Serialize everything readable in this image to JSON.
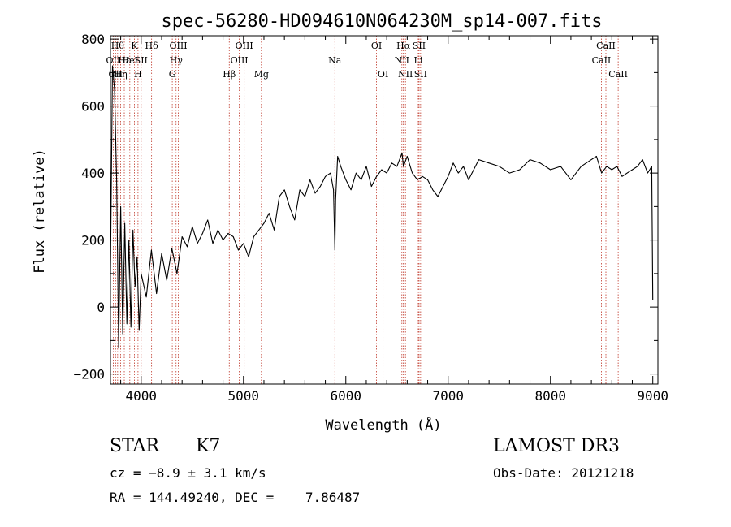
{
  "chart_data": {
    "type": "line",
    "title": "spec-56280-HD094610N064230M_sp14-007.fits",
    "xlabel": "Wavelength (Å)",
    "ylabel": "Flux (relative)",
    "xlim": [
      3700,
      9050
    ],
    "ylim": [
      -230,
      810
    ],
    "xticks": [
      4000,
      5000,
      6000,
      7000,
      8000,
      9000
    ],
    "yticks": [
      -200,
      0,
      200,
      400,
      600,
      800
    ],
    "xtick_labels": [
      "4000",
      "5000",
      "6000",
      "7000",
      "8000",
      "9000"
    ],
    "ytick_labels": [
      "−200",
      "0",
      "200",
      "400",
      "600",
      "800"
    ],
    "series": [
      {
        "name": "flux",
        "x": [
          3700,
          3720,
          3740,
          3760,
          3780,
          3800,
          3820,
          3840,
          3860,
          3880,
          3900,
          3920,
          3940,
          3960,
          3980,
          4000,
          4050,
          4100,
          4150,
          4200,
          4250,
          4300,
          4350,
          4400,
          4450,
          4500,
          4550,
          4600,
          4650,
          4700,
          4750,
          4800,
          4850,
          4900,
          4950,
          5000,
          5050,
          5100,
          5150,
          5200,
          5250,
          5300,
          5350,
          5400,
          5450,
          5500,
          5550,
          5600,
          5650,
          5700,
          5750,
          5800,
          5850,
          5880,
          5893,
          5900,
          5920,
          5950,
          6000,
          6050,
          6100,
          6150,
          6200,
          6250,
          6300,
          6350,
          6400,
          6450,
          6500,
          6550,
          6563,
          6600,
          6650,
          6700,
          6750,
          6800,
          6850,
          6900,
          6950,
          7000,
          7050,
          7100,
          7150,
          7200,
          7300,
          7400,
          7500,
          7600,
          7700,
          7800,
          7900,
          8000,
          8100,
          8200,
          8300,
          8400,
          8450,
          8500,
          8550,
          8600,
          8650,
          8700,
          8750,
          8800,
          8850,
          8900,
          8950,
          8990,
          9000
        ],
        "y": [
          100,
          720,
          650,
          380,
          -120,
          300,
          -80,
          250,
          -50,
          200,
          -60,
          230,
          60,
          150,
          -70,
          100,
          30,
          170,
          40,
          160,
          80,
          175,
          100,
          210,
          180,
          240,
          190,
          220,
          260,
          190,
          230,
          200,
          220,
          210,
          170,
          190,
          150,
          210,
          230,
          250,
          280,
          230,
          330,
          350,
          300,
          260,
          350,
          330,
          380,
          340,
          360,
          390,
          400,
          350,
          170,
          320,
          450,
          420,
          380,
          350,
          400,
          380,
          420,
          360,
          390,
          410,
          400,
          430,
          420,
          460,
          420,
          450,
          400,
          380,
          390,
          380,
          350,
          330,
          360,
          390,
          430,
          400,
          420,
          380,
          440,
          430,
          420,
          400,
          410,
          440,
          430,
          410,
          420,
          380,
          420,
          440,
          450,
          400,
          420,
          410,
          420,
          390,
          400,
          410,
          420,
          440,
          400,
          420,
          20
        ]
      }
    ],
    "lines": [
      {
        "wl": 3727,
        "label": "OII",
        "row": 2
      },
      {
        "wl": 3750,
        "label": "OII",
        "row": 3
      },
      {
        "wl": 3770,
        "label": "Hθ",
        "row": 1
      },
      {
        "wl": 3800,
        "label": "Hη",
        "row": 3
      },
      {
        "wl": 3835,
        "label": "Hε",
        "row": 2
      },
      {
        "wl": 3889,
        "label": "HeI",
        "row": 2
      },
      {
        "wl": 3934,
        "label": "K",
        "row": 1
      },
      {
        "wl": 3969,
        "label": "H",
        "row": 3
      },
      {
        "wl": 4000,
        "label": "SII",
        "row": 2
      },
      {
        "wl": 4102,
        "label": "Hδ",
        "row": 1
      },
      {
        "wl": 4304,
        "label": "G",
        "row": 3
      },
      {
        "wl": 4341,
        "label": "Hγ",
        "row": 2
      },
      {
        "wl": 4363,
        "label": "OIII",
        "row": 1
      },
      {
        "wl": 4861,
        "label": "Hβ",
        "row": 3
      },
      {
        "wl": 4959,
        "label": "OIII",
        "row": 2
      },
      {
        "wl": 5007,
        "label": "OIII",
        "row": 1
      },
      {
        "wl": 5175,
        "label": "Mg",
        "row": 3
      },
      {
        "wl": 5893,
        "label": "Na",
        "row": 2
      },
      {
        "wl": 6300,
        "label": "OI",
        "row": 1
      },
      {
        "wl": 6364,
        "label": "OI",
        "row": 3
      },
      {
        "wl": 6548,
        "label": "NII",
        "row": 2
      },
      {
        "wl": 6563,
        "label": "Hα",
        "row": 1
      },
      {
        "wl": 6583,
        "label": "NII",
        "row": 3
      },
      {
        "wl": 6708,
        "label": "Li",
        "row": 2
      },
      {
        "wl": 6716,
        "label": "SII",
        "row": 1
      },
      {
        "wl": 6731,
        "label": "SII",
        "row": 3
      },
      {
        "wl": 8498,
        "label": "CaII",
        "row": 2
      },
      {
        "wl": 8542,
        "label": "CaII",
        "row": 1
      },
      {
        "wl": 8662,
        "label": "CaII",
        "row": 3
      }
    ]
  },
  "info": {
    "object_class": "STAR",
    "subclass": "K7",
    "survey": "LAMOST DR3",
    "cz": "cz = −8.9 ± 3.1 km/s",
    "obs_date": "Obs-Date: 20121218",
    "coords": "RA = 144.49240, DEC =    7.86487"
  }
}
